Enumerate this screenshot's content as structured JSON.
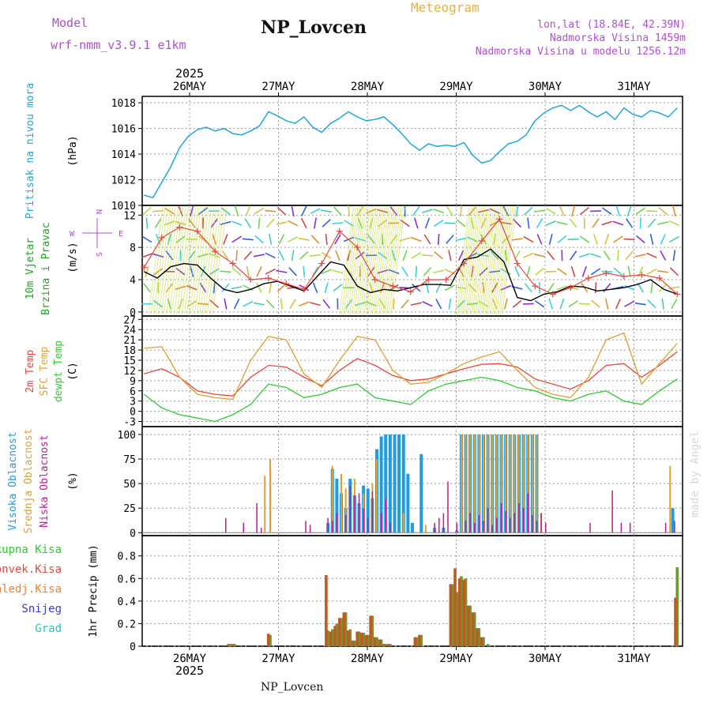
{
  "header": {
    "model_label": "Model",
    "model_name": "wrf-nmm_v3.9.1 e1km",
    "station": "NP_Lovcen",
    "product": "Meteogram",
    "lonlat": "lon,lat (18.84E, 42.39N)",
    "altitude": "Nadmorska Visina 1459m",
    "model_altitude": "Nadmorska Visina u modelu 1256.12m",
    "footer_station": "NP_Lovcen",
    "credit": "made by Angel"
  },
  "time_axis": {
    "year": "2025",
    "days": [
      "26MAY",
      "27MAY",
      "28MAY",
      "29MAY",
      "30MAY",
      "31MAY"
    ]
  },
  "colors": {
    "pressure": "#1ea7e0",
    "temp2m": "#e8463c",
    "sfc_temp": "#e0a030",
    "dewpoint": "#2ecc2e",
    "cloud_high": "#1e9de0",
    "cloud_mid": "#e0a030",
    "cloud_low": "#c01a9a",
    "precip_total": "#2ecc2e",
    "precip_conv": "#e8463c",
    "precip_frozen": "#f08030",
    "snow": "#3a3ad8",
    "hail": "#20c8b8",
    "wind_speed": "#000000",
    "wind_gust": "#e8463c",
    "label_purple": "#b04ed8",
    "label_orange": "#e8b040",
    "grid": "#9a9a9a"
  },
  "chart_data": [
    {
      "type": "line",
      "ylabel": "Pritisak na nivou mora",
      "unit": "(hPa)",
      "ylim": [
        1010,
        1018.5
      ],
      "yticks": [
        1010,
        1012,
        1014,
        1016,
        1018
      ],
      "grid": true,
      "series": [
        {
          "name": "pressure",
          "x": [
            0,
            0.1,
            0.2,
            0.3,
            0.4,
            0.5,
            0.6,
            0.7,
            0.8,
            0.9,
            1,
            1.1,
            1.2,
            1.3,
            1.4,
            1.5,
            1.6,
            1.7,
            1.8,
            1.9,
            2,
            2.1,
            2.2,
            2.3,
            2.4,
            2.5,
            2.6,
            2.7,
            2.8,
            2.9,
            3,
            3.1,
            3.2,
            3.3,
            3.4,
            3.5,
            3.6,
            3.7,
            3.8,
            3.9,
            4,
            4.1,
            4.2,
            4.3,
            4.4,
            4.5,
            4.6,
            4.7,
            4.8,
            4.9,
            5,
            5.1,
            5.2,
            5.3,
            5.4,
            5.5,
            5.6,
            5.7,
            5.8,
            5.9,
            6
          ],
          "values": [
            1010.8,
            1010.6,
            1011.8,
            1013.0,
            1014.5,
            1015.4,
            1015.9,
            1016.1,
            1015.8,
            1016.0,
            1015.6,
            1015.5,
            1015.8,
            1016.2,
            1017.3,
            1017.0,
            1016.6,
            1016.4,
            1016.9,
            1016.1,
            1015.7,
            1016.4,
            1016.8,
            1017.3,
            1016.9,
            1016.6,
            1016.7,
            1016.9,
            1016.3,
            1015.6,
            1014.8,
            1014.3,
            1014.8,
            1014.6,
            1014.7,
            1014.6,
            1014.9,
            1013.9,
            1013.3,
            1013.5,
            1014.2,
            1014.8,
            1015.0,
            1015.5,
            1016.6,
            1017.2,
            1017.6,
            1017.8,
            1017.4,
            1017.8,
            1017.3,
            1016.9,
            1017.3,
            1016.7,
            1017.6,
            1017.1,
            1016.9,
            1017.4,
            1017.2,
            1016.9,
            1017.6
          ]
        }
      ]
    },
    {
      "type": "line",
      "ylabel": "10m Vjetar Brzina i Pravac",
      "unit": "(m/s)",
      "ylim": [
        -0.5,
        13.2
      ],
      "yticks": [
        0,
        4,
        8,
        12
      ],
      "grid": true,
      "compass": {
        "top": "N",
        "west": "W",
        "east": "E",
        "bottom": "S"
      },
      "series": [
        {
          "name": "wind speed",
          "x": [
            0,
            0.15,
            0.3,
            0.45,
            0.6,
            0.75,
            0.9,
            1.05,
            1.2,
            1.35,
            1.5,
            1.65,
            1.8,
            1.95,
            2.1,
            2.25,
            2.4,
            2.55,
            2.7,
            2.85,
            3,
            3.15,
            3.3,
            3.45,
            3.6,
            3.75,
            3.9,
            4.05,
            4.2,
            4.35,
            4.5,
            4.65,
            4.8,
            4.95,
            5.1,
            5.25,
            5.4,
            5.55,
            5.7,
            5.85,
            6
          ],
          "values": [
            5,
            4.2,
            5.6,
            6,
            5.8,
            4.2,
            2.8,
            2.4,
            2.8,
            3.5,
            3.8,
            3.2,
            2.6,
            4.4,
            6.2,
            5.8,
            3.2,
            2.4,
            2.8,
            2.6,
            3,
            3.4,
            3.4,
            3.3,
            6.5,
            6.8,
            7.8,
            6.2,
            1.8,
            1.4,
            2.2,
            2.5,
            3.2,
            3.1,
            2.6,
            2.8,
            3,
            3.4,
            4,
            2.8,
            2.2
          ]
        },
        {
          "name": "wind gust",
          "x": [
            0,
            0.2,
            0.4,
            0.6,
            0.8,
            1,
            1.2,
            1.4,
            1.6,
            1.8,
            2,
            2.2,
            2.4,
            2.6,
            2.8,
            3,
            3.2,
            3.4,
            3.6,
            3.8,
            4,
            4.2,
            4.4,
            4.6,
            4.8,
            5,
            5.2,
            5.4,
            5.6,
            5.8,
            6
          ],
          "values": [
            5.5,
            9.2,
            10.5,
            10,
            7.5,
            6,
            4,
            4.2,
            3.5,
            2.8,
            6,
            10,
            8,
            4,
            3.2,
            2.5,
            4,
            4,
            6,
            8.8,
            11.5,
            6,
            3.2,
            2.2,
            3,
            4.2,
            4.8,
            4.4,
            4.6,
            4.2,
            2.2
          ]
        }
      ]
    },
    {
      "type": "line",
      "ylabel": [
        "2m Temp",
        "SFC Temp",
        "dewpt Temp"
      ],
      "unit": "(C)",
      "ylim": [
        -4.5,
        28
      ],
      "yticks": [
        -3,
        0,
        3,
        6,
        9,
        12,
        15,
        18,
        21,
        24,
        27
      ],
      "grid": true,
      "series": [
        {
          "name": "2m Temp",
          "x": [
            0,
            0.2,
            0.4,
            0.6,
            0.8,
            1,
            1.2,
            1.4,
            1.6,
            1.8,
            2,
            2.2,
            2.4,
            2.6,
            2.8,
            3,
            3.2,
            3.4,
            3.6,
            3.8,
            4,
            4.2,
            4.4,
            4.6,
            4.8,
            5,
            5.2,
            5.4,
            5.6,
            5.8,
            6
          ],
          "values": [
            11,
            12.5,
            10,
            6,
            5,
            4.5,
            10,
            13.5,
            13,
            10,
            7.5,
            12,
            15.5,
            13.5,
            10.5,
            9,
            9.5,
            11,
            12.5,
            13.8,
            14,
            13,
            9.5,
            8,
            6.5,
            9,
            13.5,
            14,
            10,
            13.5,
            17.5
          ]
        },
        {
          "name": "SFC Temp",
          "x": [
            0,
            0.2,
            0.4,
            0.6,
            0.8,
            1,
            1.2,
            1.4,
            1.6,
            1.8,
            2,
            2.2,
            2.4,
            2.6,
            2.8,
            3,
            3.2,
            3.4,
            3.6,
            3.8,
            4,
            4.2,
            4.4,
            4.6,
            4.8,
            5,
            5.2,
            5.4,
            5.6,
            5.8,
            6
          ],
          "values": [
            18.5,
            19,
            10,
            5,
            4,
            3.5,
            15,
            22,
            21,
            11,
            7,
            15,
            22,
            21,
            12,
            8,
            8.5,
            11,
            14,
            16,
            17.5,
            12,
            7,
            5,
            4,
            10,
            21,
            23,
            8,
            14,
            20
          ]
        },
        {
          "name": "dewpt Temp",
          "x": [
            0,
            0.2,
            0.4,
            0.6,
            0.8,
            1,
            1.2,
            1.4,
            1.6,
            1.8,
            2,
            2.2,
            2.4,
            2.6,
            2.8,
            3,
            3.2,
            3.4,
            3.6,
            3.8,
            4,
            4.2,
            4.4,
            4.6,
            4.8,
            5,
            5.2,
            5.4,
            5.6,
            5.8,
            6
          ],
          "values": [
            5,
            1,
            -1,
            -2,
            -3,
            -1,
            2,
            8,
            7,
            4,
            5,
            7,
            8,
            4,
            3,
            2,
            6,
            8,
            9,
            10,
            9,
            7,
            6,
            4,
            3,
            5,
            6,
            3,
            2,
            6,
            9.5
          ]
        }
      ]
    },
    {
      "type": "bar",
      "ylabel": [
        "Visoka Oblacnost",
        "Srednja Oblacnost",
        "Niska Oblacnost"
      ],
      "unit": "(%)",
      "ylim": [
        -3,
        108
      ],
      "yticks": [
        0,
        25,
        50,
        75,
        100
      ],
      "grid": true,
      "series": [
        {
          "name": "Visoka Oblacnost",
          "x": [
            2.07,
            2.12,
            2.17,
            2.22,
            2.27,
            2.32,
            2.37,
            2.42,
            2.47,
            2.52,
            2.57,
            2.62,
            2.67,
            2.72,
            2.77,
            2.82,
            2.87,
            2.92,
            2.97,
            3.02,
            3.12,
            3.27,
            3.37,
            3.52,
            3.57,
            3.62,
            3.67,
            3.72,
            3.77,
            3.82,
            3.87,
            3.92,
            3.97,
            4.02,
            4.07,
            4.12,
            4.17,
            4.22,
            4.27,
            4.32,
            4.37,
            4.42,
            5.95
          ],
          "values": [
            10,
            65,
            55,
            40,
            25,
            55,
            38,
            30,
            48,
            45,
            35,
            85,
            98,
            100,
            100,
            100,
            100,
            100,
            60,
            10,
            80,
            5,
            5,
            2,
            100,
            100,
            100,
            100,
            100,
            100,
            100,
            100,
            100,
            100,
            100,
            100,
            100,
            100,
            100,
            100,
            100,
            100,
            25
          ]
        },
        {
          "name": "Srednja Oblacnost",
          "x": [
            1.36,
            1.42,
            2.12,
            2.22,
            2.27,
            2.37,
            2.47,
            2.57,
            2.62,
            2.72,
            2.92,
            3.17,
            3.57,
            3.62,
            3.67,
            3.72,
            3.77,
            3.82,
            3.87,
            3.92,
            3.97,
            4.02,
            4.07,
            4.12,
            4.17,
            4.22,
            4.27,
            4.32,
            4.37,
            4.42,
            4.47,
            5.92
          ],
          "values": [
            58,
            75,
            68,
            60,
            45,
            55,
            40,
            50,
            75,
            35,
            20,
            8,
            100,
            100,
            100,
            100,
            100,
            100,
            100,
            100,
            100,
            100,
            100,
            100,
            100,
            100,
            100,
            100,
            100,
            100,
            20,
            68
          ]
        },
        {
          "name": "Niska Oblacnost",
          "x": [
            0.92,
            1.12,
            1.27,
            1.32,
            1.82,
            1.87,
            2.07,
            2.12,
            2.17,
            2.27,
            2.32,
            2.37,
            2.42,
            2.47,
            2.52,
            2.57,
            2.67,
            2.72,
            2.77,
            3.27,
            3.32,
            3.37,
            3.42,
            3.52,
            3.62,
            3.67,
            3.72,
            3.77,
            3.82,
            3.87,
            3.92,
            3.97,
            4.02,
            4.07,
            4.12,
            4.17,
            4.22,
            4.27,
            4.32,
            4.37,
            4.42,
            4.47,
            4.52,
            5.02,
            5.27,
            5.37,
            5.47,
            5.87,
            5.97
          ],
          "values": [
            15,
            10,
            30,
            5,
            12,
            8,
            15,
            12,
            20,
            18,
            48,
            38,
            40,
            25,
            15,
            42,
            20,
            35,
            10,
            10,
            15,
            20,
            52,
            10,
            12,
            20,
            10,
            18,
            12,
            25,
            8,
            15,
            30,
            22,
            15,
            20,
            30,
            25,
            40,
            18,
            12,
            20,
            10,
            10,
            43,
            10,
            10,
            10,
            12
          ]
        }
      ]
    },
    {
      "type": "bar",
      "ylabel": "1hr Precip",
      "unit": "(mm)",
      "ylim": [
        0,
        0.98
      ],
      "yticks": [
        0,
        0.2,
        0.4,
        0.6,
        0.8
      ],
      "grid": true,
      "legend": [
        "Ukupna Kisa",
        "Konvek.Kisa",
        "Zaledj.Kisa",
        "Snijeg",
        "Grad"
      ],
      "series": [
        {
          "name": "Ukupna Kisa",
          "x": [
            0.97,
            1.02,
            1.42,
            2.07,
            2.12,
            2.17,
            2.22,
            2.27,
            2.32,
            2.37,
            2.42,
            2.47,
            2.52,
            2.57,
            2.62,
            2.67,
            2.72,
            2.77,
            3.07,
            3.12,
            3.47,
            3.52,
            3.57,
            3.62,
            3.67,
            3.72,
            3.77,
            3.82,
            3.87,
            6.0
          ],
          "values": [
            0.02,
            0.02,
            0.1,
            0.14,
            0.15,
            0.2,
            0.25,
            0.3,
            0.15,
            0.05,
            0.13,
            0.12,
            0.1,
            0.27,
            0.08,
            0.06,
            0.02,
            0.02,
            0.08,
            0.1,
            0.55,
            0.48,
            0.62,
            0.6,
            0.36,
            0.3,
            0.16,
            0.08,
            0.02,
            0.7
          ]
        },
        {
          "name": "Konvek.Kisa",
          "x": [
            0.95,
            1.0,
            1.4,
            2.05,
            2.1,
            2.15,
            2.2,
            2.25,
            2.3,
            2.35,
            2.4,
            2.45,
            2.5,
            2.55,
            2.6,
            2.65,
            2.7,
            2.75,
            3.05,
            3.1,
            3.45,
            3.5,
            3.55,
            3.6,
            3.65,
            3.7,
            3.75,
            3.8,
            5.98
          ],
          "values": [
            0.02,
            0.02,
            0.11,
            0.63,
            0.13,
            0.18,
            0.25,
            0.3,
            0.14,
            0.05,
            0.13,
            0.12,
            0.1,
            0.27,
            0.08,
            0.06,
            0.02,
            0.02,
            0.08,
            0.1,
            0.55,
            0.69,
            0.6,
            0.59,
            0.36,
            0.3,
            0.16,
            0.08,
            0.43
          ]
        }
      ]
    }
  ]
}
